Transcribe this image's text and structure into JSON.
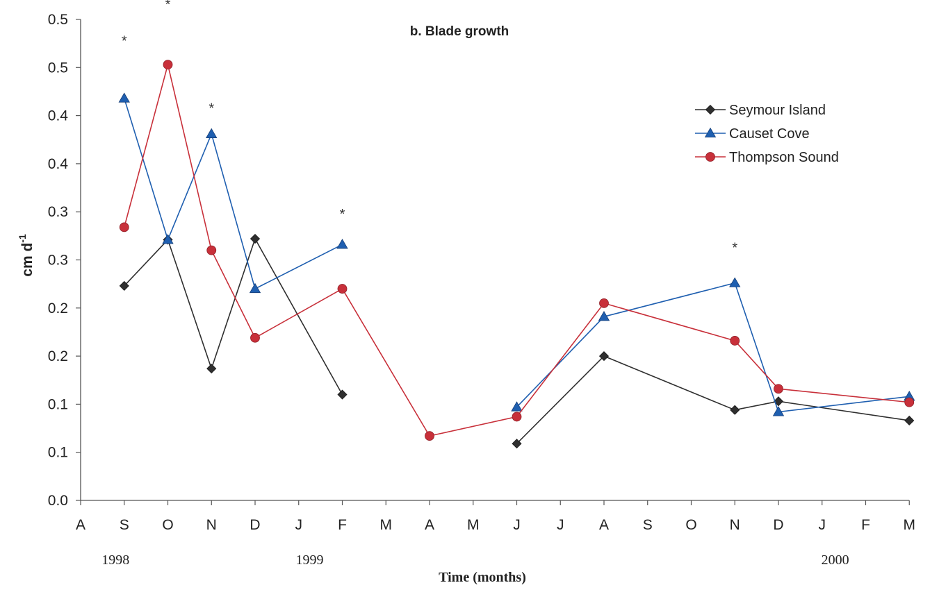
{
  "chart_data": {
    "type": "line",
    "title": "b. Blade growth",
    "ylabel": "cm d",
    "ylabel_sup": "-1",
    "xlabel": "Time (months)",
    "ylim": [
      0,
      0.5
    ],
    "yticks": [
      0.0,
      0.05,
      0.1,
      0.15,
      0.2,
      0.25,
      0.3,
      0.35,
      0.4,
      0.45,
      0.5
    ],
    "ytick_labels": [
      "0.0",
      "0.1",
      "0.1",
      "0.2",
      "0.2",
      "0.3",
      "0.3",
      "0.4",
      "0.4",
      "0.5",
      "0.5"
    ],
    "categories": [
      "A",
      "S",
      "O",
      "N",
      "D",
      "J",
      "F",
      "M",
      "A",
      "M",
      "J",
      "J",
      "A",
      "S",
      "O",
      "N",
      "D",
      "J",
      "F",
      "M"
    ],
    "year_labels": [
      {
        "label": "1998",
        "at": 0.8
      },
      {
        "label": "1999",
        "at": 5.25
      },
      {
        "label": "2000",
        "at": 17.3
      }
    ],
    "legend_position": "top-right",
    "series": [
      {
        "name": "Seymour Island",
        "color": "#2f2f2f",
        "marker": "diamond",
        "segments": [
          [
            [
              1,
              0.223
            ],
            [
              2,
              0.271
            ],
            [
              3,
              0.137
            ],
            [
              4,
              0.272
            ],
            [
              6,
              0.11
            ]
          ],
          [
            [
              10,
              0.059
            ],
            [
              12,
              0.15
            ],
            [
              15,
              0.094
            ],
            [
              16,
              0.103
            ],
            [
              19,
              0.083
            ]
          ]
        ]
      },
      {
        "name": "Causet Cove",
        "color": "#1f5fb0",
        "marker": "triangle",
        "segments": [
          [
            [
              1,
              0.418
            ],
            [
              2,
              0.271
            ],
            [
              3,
              0.381
            ],
            [
              4,
              0.22
            ],
            [
              6,
              0.266
            ]
          ],
          [
            [
              10,
              0.097
            ],
            [
              12,
              0.191
            ],
            [
              15,
              0.226
            ],
            [
              16,
              0.092
            ],
            [
              19,
              0.108
            ]
          ]
        ]
      },
      {
        "name": "Thompson Sound",
        "color": "#c8303a",
        "marker": "circle",
        "segments": [
          [
            [
              1,
              0.284
            ],
            [
              2,
              0.453
            ],
            [
              3,
              0.26
            ],
            [
              4,
              0.169
            ],
            [
              6,
              0.22
            ],
            [
              8,
              0.067
            ],
            [
              10,
              0.087
            ],
            [
              12,
              0.205
            ],
            [
              15,
              0.166
            ],
            [
              16,
              0.116
            ],
            [
              19,
              0.102
            ]
          ]
        ]
      }
    ],
    "significance_marks": [
      {
        "symbol": "*",
        "x": 1,
        "y": 0.48
      },
      {
        "symbol": "*",
        "x": 2,
        "y": 0.518
      },
      {
        "symbol": "*",
        "x": 3,
        "y": 0.41
      },
      {
        "symbol": "*",
        "x": 6,
        "y": 0.3
      },
      {
        "symbol": "*",
        "x": 15,
        "y": 0.265
      }
    ]
  }
}
